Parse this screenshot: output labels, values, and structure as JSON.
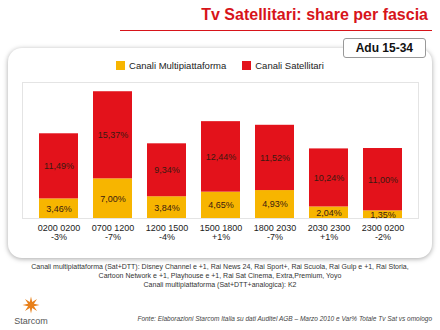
{
  "chart_data": {
    "type": "bar",
    "stacked": true,
    "title": "Tv Satellitari: share per fascia",
    "subtitle": "Adu 15-34",
    "categories": [
      "0200 0200",
      "0700 1200",
      "1200 1500",
      "1500 1800",
      "1800 2030",
      "2030 2300",
      "2300 0200"
    ],
    "series": [
      {
        "name": "Canali Multipiattaforma",
        "color": "#f7b500",
        "values": [
          3.46,
          7.0,
          3.84,
          4.65,
          4.93,
          2.04,
          1.35
        ],
        "value_labels": [
          "3,46%",
          "7,00%",
          "3,84%",
          "4,65%",
          "4,93%",
          "2,04%",
          "1,35%"
        ]
      },
      {
        "name": "Canali Satellitari",
        "color": "#e3121b",
        "values": [
          11.49,
          15.37,
          9.34,
          12.44,
          11.52,
          10.24,
          11.0
        ],
        "value_labels": [
          "11,49%",
          "15,37%",
          "9,34%",
          "12,44%",
          "11,52%",
          "10,24%",
          "11,00%"
        ]
      }
    ],
    "variations": [
      "-3%",
      "-7%",
      "-4%",
      "+1%",
      "-7%",
      "+1%",
      "-2%"
    ],
    "ylim": [
      0,
      24
    ],
    "yticks": [],
    "tick_labels": "x",
    "data_labels": true,
    "legend": "top",
    "grid": false,
    "notes": [
      "Canali multipiattaforma (Sat+DTT): Disney Channel e +1, Rai News 24, Rai Sport+, Rai Scuola, Rai Gulp e +1, Rai Storia,",
      "Cartoon Network e +1, Playhouse e +1, Rai Sat Cinema, Extra,Premium, Yoyo",
      "Canali multipiattaforma (Sat+DTT+analogica): K2"
    ],
    "source": "Fonte: Elaborazioni Starcom Italia su dati Auditel AGB – Marzo 2010  e Var% Totale Tv Sat vs omologo",
    "logo": "Starcom"
  }
}
